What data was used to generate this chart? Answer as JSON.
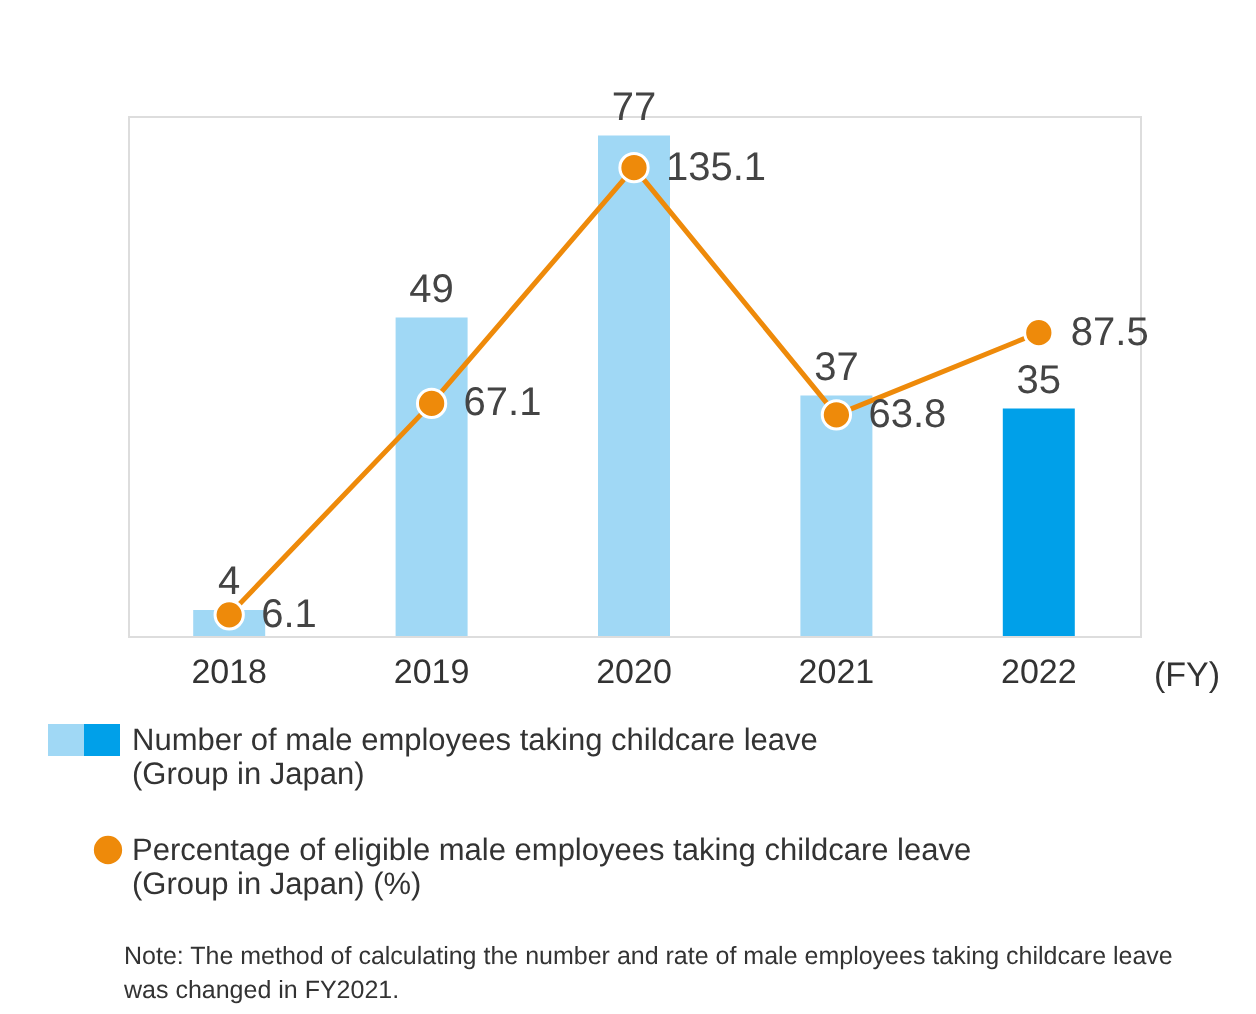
{
  "chart_data": {
    "type": "bar",
    "categories": [
      "2018",
      "2019",
      "2020",
      "2021",
      "2022"
    ],
    "series": [
      {
        "name": "Number of male employees taking childcare leave (Group in Japan)",
        "colors": [
          "#a0d8f5",
          "#a0d8f5",
          "#a0d8f5",
          "#a0d8f5",
          "#00a0e9"
        ],
        "values": [
          4,
          49,
          77,
          37,
          35
        ]
      },
      {
        "name": "Percentage of eligible male employees taking childcare leave (Group in Japan) (%)",
        "type": "line",
        "axis": "y2",
        "color": "#ee8a0a",
        "values": [
          6.1,
          67.1,
          135.1,
          63.8,
          87.5
        ]
      }
    ],
    "ylim": [
      0,
      80
    ],
    "y2lim": [
      0,
      150
    ],
    "data_labels": true,
    "tick_labels": "x",
    "legend": "bottom",
    "marker": "circle",
    "grid": false,
    "annotations": [
      {
        "text": "(FY)"
      },
      "Note: The method of calculating the number and rate of male employees taking childcare leave was changed in FY2021."
    ]
  }
}
